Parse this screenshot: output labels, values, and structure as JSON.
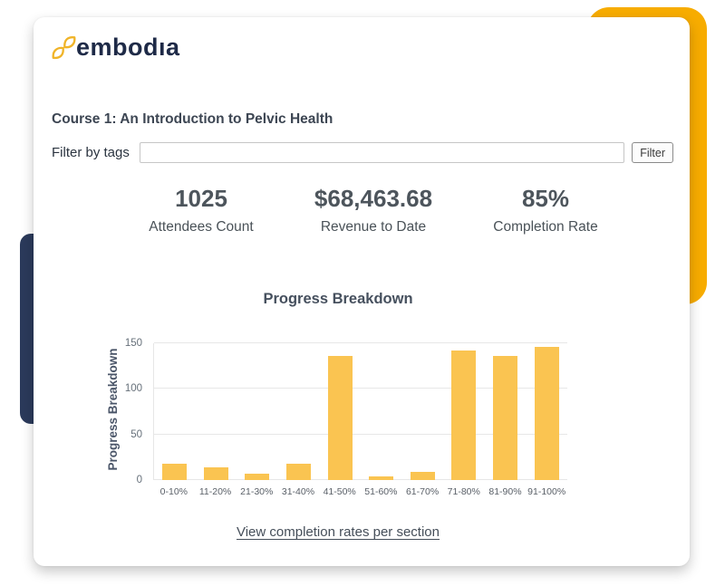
{
  "logo": {
    "text": "embodıa"
  },
  "page": {
    "course_title": "Course 1: An Introduction to Pelvic Health"
  },
  "filter": {
    "label": "Filter by tags",
    "input_value": "",
    "button_label": "Filter"
  },
  "stats": [
    {
      "value": "1025",
      "label": "Attendees Count"
    },
    {
      "value": "$68,463.68",
      "label": "Revenue to Date"
    },
    {
      "value": "85%",
      "label": "Completion Rate"
    }
  ],
  "chart_data": {
    "type": "bar",
    "title": "Progress Breakdown",
    "categories": [
      "0-10%",
      "11-20%",
      "21-30%",
      "31-40%",
      "41-50%",
      "51-60%",
      "61-70%",
      "71-80%",
      "81-90%",
      "91-100%"
    ],
    "values": [
      18,
      14,
      7,
      18,
      136,
      4,
      9,
      142,
      136,
      146
    ],
    "xlabel": "",
    "ylabel": "Progress Breakdown",
    "ylim": [
      0,
      150
    ],
    "yticks": [
      0,
      50,
      100,
      150
    ],
    "grid": true,
    "legend": false,
    "bar_color": "#FAC451"
  },
  "footer_link": {
    "label": "View completion rates per section"
  },
  "colors": {
    "accent_yellow": "#F7AC00",
    "navy": "#2B3A5B",
    "logo_yellow": "#F0B429"
  }
}
